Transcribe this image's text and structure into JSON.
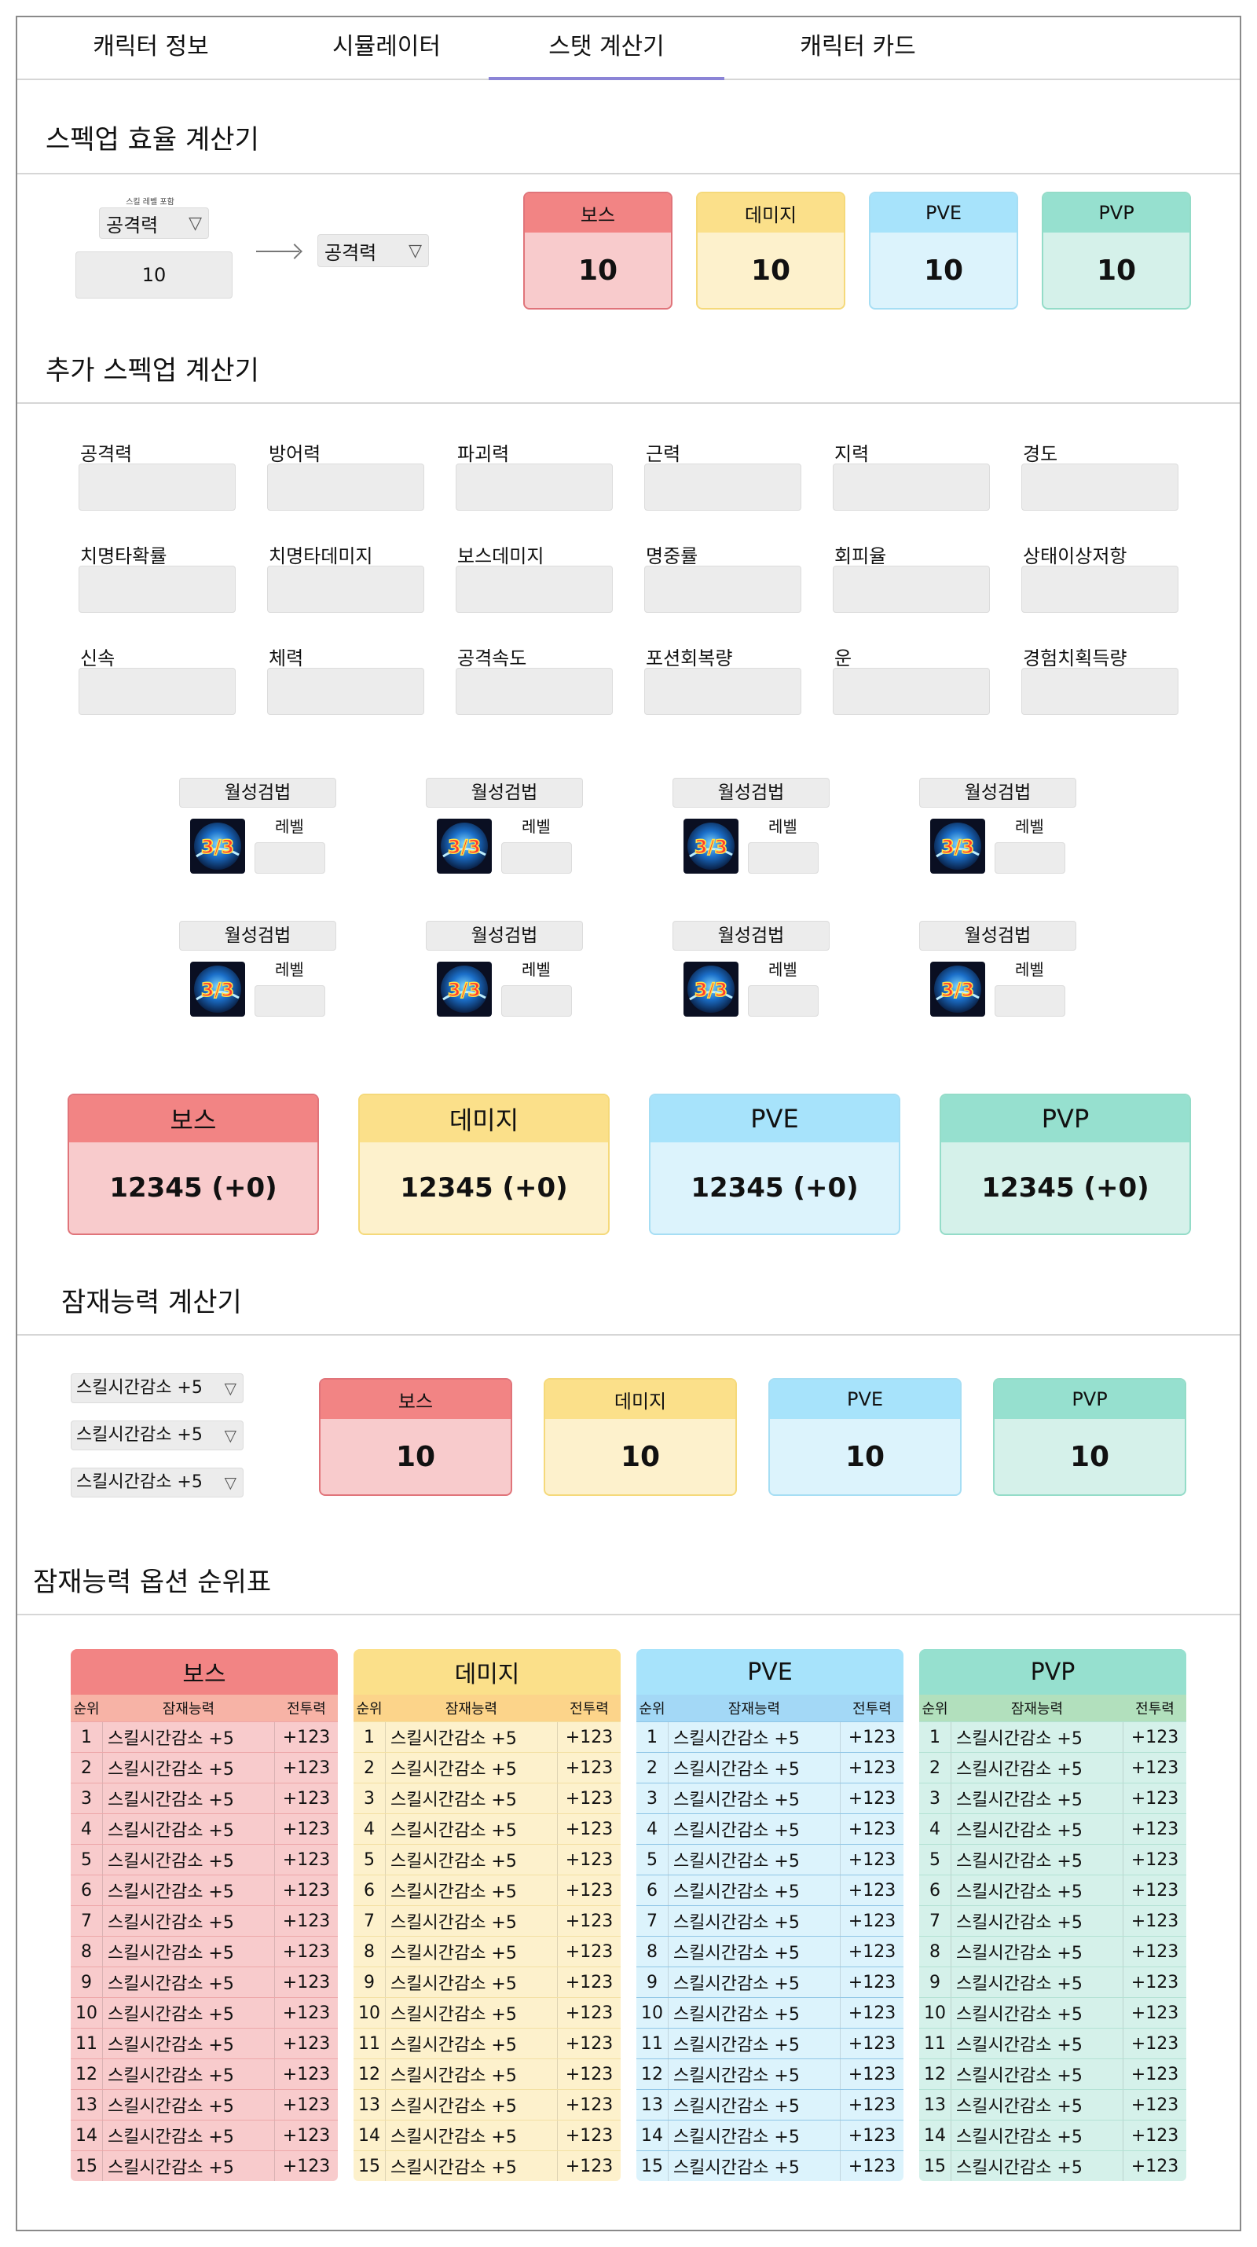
{
  "tabs": [
    {
      "label": "캐릭터 정보"
    },
    {
      "label": "시뮬레이터"
    },
    {
      "label": "스탯 계산기"
    },
    {
      "label": "캐릭터 카드"
    }
  ],
  "active_tab": "스탯 계산기",
  "spec_efficiency": {
    "title": "스펙업 효율 계산기",
    "tiny_label": "스킬 레벨 포함",
    "from_select": "공격력",
    "amount": "10",
    "to_select": "공격력",
    "cards": [
      {
        "label": "보스",
        "value": "10"
      },
      {
        "label": "데미지",
        "value": "10"
      },
      {
        "label": "PVE",
        "value": "10"
      },
      {
        "label": "PVP",
        "value": "10"
      }
    ]
  },
  "extra_spec": {
    "title": "추가 스펙업 계산기",
    "stats": [
      "공격력",
      "방어력",
      "파괴력",
      "근력",
      "지력",
      "경도",
      "치명타확률",
      "치명타데미지",
      "보스데미지",
      "명중률",
      "회피율",
      "상태이상저항",
      "신속",
      "체력",
      "공격속도",
      "포션회복량",
      "운",
      "경험치획득량"
    ],
    "skills": [
      {
        "name": "월성검법",
        "level_label": "레벨",
        "icon_text": "3/3"
      },
      {
        "name": "월성검법",
        "level_label": "레벨",
        "icon_text": "3/3"
      },
      {
        "name": "월성검법",
        "level_label": "레벨",
        "icon_text": "3/3"
      },
      {
        "name": "월성검법",
        "level_label": "레벨",
        "icon_text": "3/3"
      },
      {
        "name": "월성검법",
        "level_label": "레벨",
        "icon_text": "3/3"
      },
      {
        "name": "월성검법",
        "level_label": "레벨",
        "icon_text": "3/3"
      },
      {
        "name": "월성검법",
        "level_label": "레벨",
        "icon_text": "3/3"
      },
      {
        "name": "월성검법",
        "level_label": "레벨",
        "icon_text": "3/3"
      }
    ],
    "cards": [
      {
        "label": "보스",
        "value": "12345 (+0)"
      },
      {
        "label": "데미지",
        "value": "12345 (+0)"
      },
      {
        "label": "PVE",
        "value": "12345 (+0)"
      },
      {
        "label": "PVP",
        "value": "12345 (+0)"
      }
    ]
  },
  "potential": {
    "title": "잠재능력 계산기",
    "selects": [
      "스킬시간감소 +5",
      "스킬시간감소 +5",
      "스킬시간감소 +5"
    ],
    "cards": [
      {
        "label": "보스",
        "value": "10"
      },
      {
        "label": "데미지",
        "value": "10"
      },
      {
        "label": "PVE",
        "value": "10"
      },
      {
        "label": "PVP",
        "value": "10"
      }
    ]
  },
  "ranking": {
    "title": "잠재능력 옵션 순위표",
    "headers": {
      "rank": "순위",
      "option": "잠재능력",
      "power": "전투력"
    },
    "tables": [
      {
        "title": "보스"
      },
      {
        "title": "데미지"
      },
      {
        "title": "PVE"
      },
      {
        "title": "PVP"
      }
    ],
    "rows": [
      {
        "rank": "1",
        "option": "스킬시간감소 +5",
        "power": "+123"
      },
      {
        "rank": "2",
        "option": "스킬시간감소 +5",
        "power": "+123"
      },
      {
        "rank": "3",
        "option": "스킬시간감소 +5",
        "power": "+123"
      },
      {
        "rank": "4",
        "option": "스킬시간감소 +5",
        "power": "+123"
      },
      {
        "rank": "5",
        "option": "스킬시간감소 +5",
        "power": "+123"
      },
      {
        "rank": "6",
        "option": "스킬시간감소 +5",
        "power": "+123"
      },
      {
        "rank": "7",
        "option": "스킬시간감소 +5",
        "power": "+123"
      },
      {
        "rank": "8",
        "option": "스킬시간감소 +5",
        "power": "+123"
      },
      {
        "rank": "9",
        "option": "스킬시간감소 +5",
        "power": "+123"
      },
      {
        "rank": "10",
        "option": "스킬시간감소 +5",
        "power": "+123"
      },
      {
        "rank": "11",
        "option": "스킬시간감소 +5",
        "power": "+123"
      },
      {
        "rank": "12",
        "option": "스킬시간감소 +5",
        "power": "+123"
      },
      {
        "rank": "13",
        "option": "스킬시간감소 +5",
        "power": "+123"
      },
      {
        "rank": "14",
        "option": "스킬시간감소 +5",
        "power": "+123"
      },
      {
        "rank": "15",
        "option": "스킬시간감소 +5",
        "power": "+123"
      }
    ]
  },
  "icons": {
    "dropdown": "triangle-down-icon",
    "arrow": "arrow-right-icon",
    "skill": "skill-icon"
  },
  "colors": {
    "boss": "#f28484",
    "damage": "#fbe08a",
    "pve": "#a7e3fb",
    "pvp": "#96e0cf",
    "tab_active": "#8b84d6"
  }
}
